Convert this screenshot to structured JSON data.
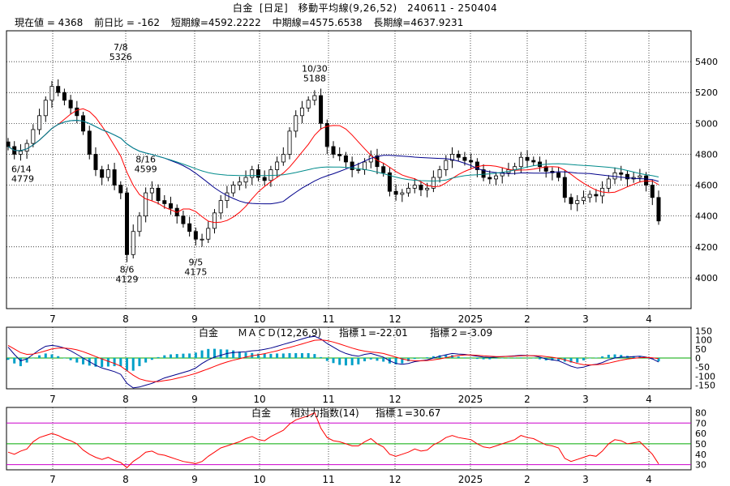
{
  "header": {
    "symbol": "白金",
    "period": "[日足]",
    "indicator": "移動平均線(9,26,52)",
    "range": "240611 - 250404"
  },
  "info": {
    "price": "現在値 = 4368",
    "change": "前日比 = -162",
    "short_ma": "短期線=4592.2222",
    "mid_ma": "中期線=4575.6538",
    "long_ma": "長期線=4637.9231"
  },
  "colors": {
    "up": "#000000",
    "short_ma": "#ff0000",
    "mid_ma": "#00008b",
    "long_ma": "#008b8b",
    "macd_hist": "#00a0c8",
    "rsi_line": "#ff0000",
    "rsi_band_outer": "#cc00cc",
    "rsi_band_mid": "#00aa00"
  },
  "chart_data": [
    {
      "type": "candlestick",
      "x_ticks": [
        "7",
        "8",
        "9",
        "10",
        "11",
        "12",
        "2025",
        "2",
        "3",
        "4"
      ],
      "y_ticks": [
        4000,
        4200,
        4400,
        4600,
        4800,
        5000,
        5200,
        5400
      ],
      "ylim": [
        3800,
        5600
      ],
      "annotations": [
        {
          "date": "6/14",
          "value": "4779"
        },
        {
          "date": "7/8",
          "value": "5326"
        },
        {
          "date": "8/6",
          "value": "4129"
        },
        {
          "date": "8/16",
          "value": "4599"
        },
        {
          "date": "9/5",
          "value": "4175"
        },
        {
          "date": "10/30",
          "value": "5188"
        }
      ],
      "series": [
        {
          "key": "close",
          "values": [
            4850,
            4800,
            4820,
            4870,
            4960,
            5050,
            5150,
            5240,
            5200,
            5150,
            5100,
            5050,
            4950,
            4800,
            4700,
            4650,
            4700,
            4600,
            4550,
            4150,
            4300,
            4400,
            4550,
            4580,
            4500,
            4480,
            4450,
            4400,
            4350,
            4300,
            4250,
            4250,
            4320,
            4420,
            4500,
            4550,
            4600,
            4620,
            4650,
            4700,
            4650,
            4630,
            4700,
            4750,
            4800,
            4950,
            5050,
            5100,
            5150,
            5180,
            5000,
            4850,
            4800,
            4790,
            4750,
            4700,
            4700,
            4750,
            4790,
            4720,
            4680,
            4560,
            4540,
            4550,
            4580,
            4600,
            4570,
            4580,
            4650,
            4700,
            4760,
            4800,
            4780,
            4760,
            4750,
            4700,
            4650,
            4640,
            4660,
            4680,
            4700,
            4720,
            4780,
            4760,
            4750,
            4720,
            4690,
            4680,
            4650,
            4520,
            4480,
            4500,
            4520,
            4540,
            4530,
            4580,
            4640,
            4680,
            4670,
            4640,
            4650,
            4660,
            4600,
            4520,
            4368
          ]
        },
        {
          "key": "short_ma",
          "name": "短期線"
        },
        {
          "key": "mid_ma",
          "name": "中期線"
        },
        {
          "key": "long_ma",
          "name": "長期線"
        }
      ]
    },
    {
      "type": "line",
      "name": "MACD(12,26,9)",
      "label_symbol": "白金",
      "label_title": "ＭＡＣＤ(12,26,9)",
      "label_ind1": "指標１=-22.01",
      "label_ind2": "指標２=-3.09",
      "y_ticks": [
        150,
        100,
        50,
        0,
        -50,
        -100,
        -150
      ],
      "ylim": [
        -170,
        170
      ],
      "series": [
        {
          "key": "macd",
          "values": [
            60,
            20,
            -15,
            -5,
            20,
            45,
            65,
            70,
            65,
            55,
            40,
            20,
            0,
            -20,
            -40,
            -55,
            -65,
            -75,
            -90,
            -140,
            -165,
            -160,
            -150,
            -140,
            -125,
            -110,
            -100,
            -90,
            -80,
            -70,
            -55,
            -30,
            -10,
            5,
            15,
            25,
            30,
            32,
            35,
            40,
            42,
            48,
            55,
            65,
            75,
            85,
            95,
            105,
            115,
            120,
            105,
            80,
            60,
            40,
            25,
            15,
            10,
            20,
            25,
            15,
            5,
            -15,
            -30,
            -35,
            -30,
            -20,
            -15,
            -10,
            0,
            10,
            18,
            25,
            22,
            20,
            15,
            10,
            5,
            3,
            5,
            8,
            10,
            12,
            15,
            14,
            12,
            5,
            -5,
            -10,
            -15,
            -30,
            -45,
            -55,
            -50,
            -40,
            -35,
            -25,
            -10,
            0,
            5,
            6,
            8,
            10,
            5,
            -5,
            -22
          ]
        },
        {
          "key": "signal",
          "values": [
            70,
            50,
            30,
            20,
            22,
            30,
            40,
            50,
            55,
            55,
            52,
            45,
            35,
            22,
            8,
            -5,
            -18,
            -30,
            -45,
            -70,
            -95,
            -115,
            -125,
            -130,
            -130,
            -125,
            -120,
            -112,
            -104,
            -95,
            -85,
            -72,
            -60,
            -46,
            -33,
            -22,
            -12,
            -4,
            5,
            12,
            18,
            24,
            32,
            40,
            50,
            58,
            68,
            78,
            88,
            98,
            100,
            96,
            88,
            78,
            66,
            55,
            45,
            38,
            33,
            30,
            25,
            15,
            5,
            -5,
            -12,
            -15,
            -15,
            -14,
            -10,
            -5,
            2,
            9,
            14,
            17,
            17,
            15,
            12,
            10,
            8,
            8,
            9,
            10,
            12,
            13,
            13,
            12,
            8,
            4,
            -2,
            -10,
            -20,
            -30,
            -37,
            -38,
            -37,
            -34,
            -28,
            -20,
            -12,
            -6,
            -2,
            2,
            3,
            1,
            -3.09
          ]
        }
      ]
    },
    {
      "type": "line",
      "name": "RSI(14)",
      "label_symbol": "白金",
      "label_title": "相対力指数(14)",
      "label_ind1": "指標１=30.67",
      "y_ticks": [
        80,
        70,
        60,
        50,
        40,
        30
      ],
      "ylim": [
        25,
        85
      ],
      "bands": [
        70,
        50,
        30
      ],
      "series": [
        {
          "key": "rsi",
          "values": [
            42,
            40,
            43,
            45,
            52,
            56,
            58,
            60,
            58,
            55,
            53,
            50,
            44,
            40,
            37,
            35,
            37,
            34,
            32,
            27,
            33,
            37,
            42,
            43,
            40,
            39,
            37,
            35,
            33,
            32,
            31,
            33,
            38,
            42,
            46,
            48,
            50,
            52,
            55,
            57,
            54,
            53,
            57,
            60,
            63,
            69,
            73,
            75,
            77,
            80,
            65,
            56,
            53,
            52,
            50,
            48,
            48,
            52,
            55,
            50,
            47,
            40,
            38,
            40,
            42,
            45,
            43,
            44,
            49,
            52,
            56,
            58,
            56,
            55,
            54,
            50,
            47,
            46,
            48,
            50,
            52,
            54,
            58,
            56,
            55,
            52,
            49,
            48,
            46,
            36,
            33,
            35,
            37,
            39,
            38,
            43,
            50,
            54,
            53,
            50,
            51,
            52,
            46,
            40,
            30.67
          ]
        }
      ]
    }
  ]
}
